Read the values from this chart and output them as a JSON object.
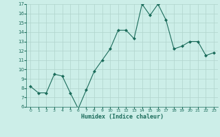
{
  "x": [
    0,
    1,
    2,
    3,
    4,
    5,
    6,
    7,
    8,
    9,
    10,
    11,
    12,
    13,
    14,
    15,
    16,
    17,
    18,
    19,
    20,
    21,
    22,
    23
  ],
  "y": [
    8.2,
    7.5,
    7.5,
    9.5,
    9.3,
    7.5,
    5.8,
    7.8,
    9.8,
    11.0,
    12.2,
    14.2,
    14.2,
    13.3,
    17.0,
    15.8,
    17.0,
    15.3,
    12.2,
    12.5,
    13.0,
    13.0,
    11.5,
    11.8
  ],
  "xlabel": "Humidex (Indice chaleur)",
  "ylim": [
    6,
    17
  ],
  "xlim": [
    -0.5,
    23.5
  ],
  "yticks": [
    6,
    7,
    8,
    9,
    10,
    11,
    12,
    13,
    14,
    15,
    16,
    17
  ],
  "xticks": [
    0,
    1,
    2,
    3,
    4,
    5,
    6,
    7,
    8,
    9,
    10,
    11,
    12,
    13,
    14,
    15,
    16,
    17,
    18,
    19,
    20,
    21,
    22,
    23
  ],
  "line_color": "#1a6b5a",
  "marker_color": "#1a6b5a",
  "bg_color": "#cceee8",
  "grid_color": "#b0d4cc",
  "font_color": "#1a6b5a"
}
